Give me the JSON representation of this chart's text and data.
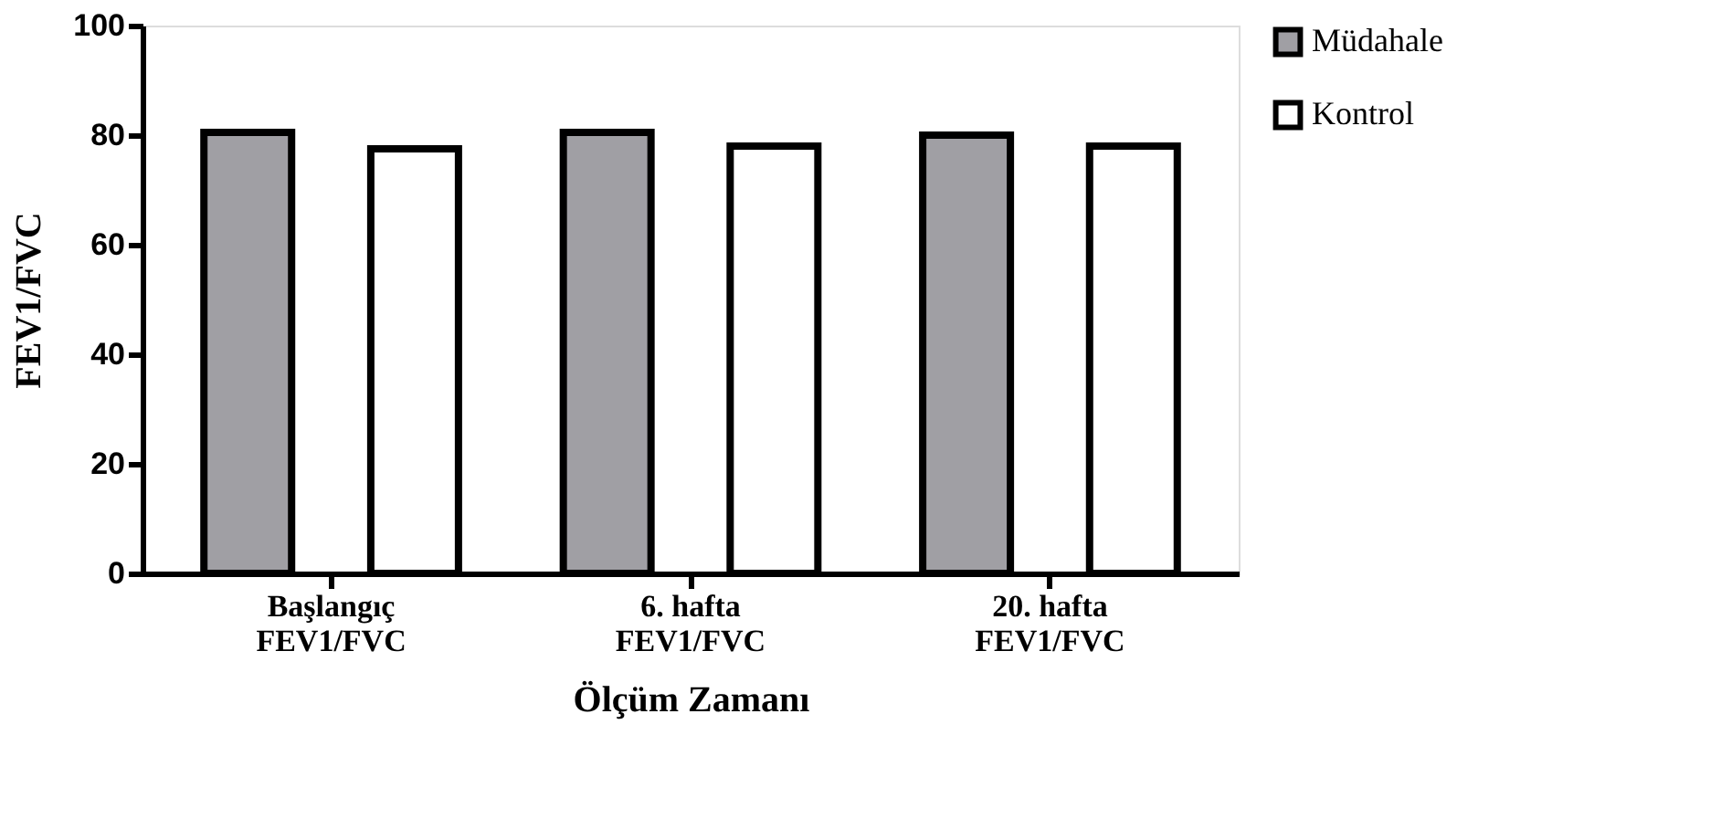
{
  "chart_data": {
    "type": "bar",
    "categories": [
      "Başlangıç\nFEV1/FVC",
      "6. hafta\nFEV1/FVC",
      "20. hafta\nFEV1/FVC"
    ],
    "series": [
      {
        "name": "Müdahale",
        "color": "#a09fa4",
        "values": [
          80.5,
          80.5,
          80
        ]
      },
      {
        "name": "Kontrol",
        "color": "#ffffff",
        "values": [
          77.5,
          78,
          78
        ]
      }
    ],
    "xlabel": "Ölçüm Zamanı",
    "ylabel": "FEV1/FVC",
    "ylim": [
      0,
      100
    ],
    "yticks": [
      0,
      20,
      40,
      60,
      80,
      100
    ],
    "grid": false,
    "legend": "top right"
  }
}
